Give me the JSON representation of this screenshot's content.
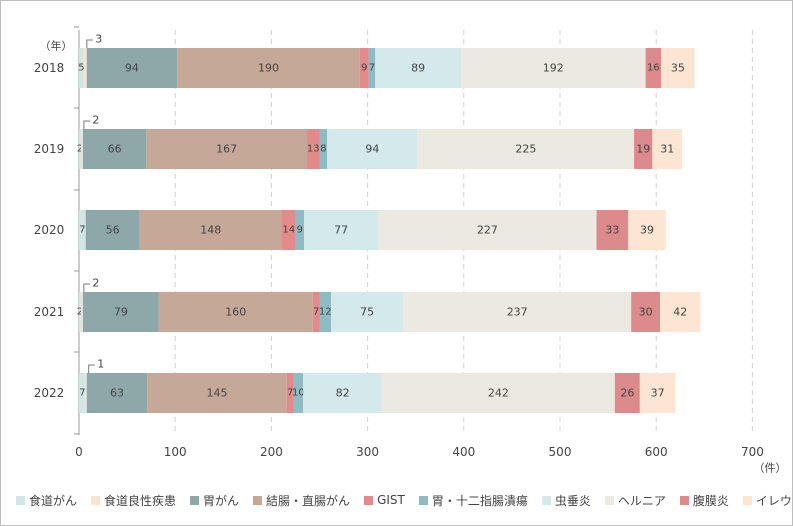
{
  "chart_data": {
    "type": "bar",
    "orientation": "horizontal",
    "stacked": true,
    "y_unit_label": "（年）",
    "x_unit_label": "（件）",
    "categories": [
      "2018",
      "2019",
      "2020",
      "2021",
      "2022"
    ],
    "series": [
      {
        "name": "食道がん",
        "color": "#d3e6e6",
        "values": [
          5,
          2,
          7,
          2,
          7
        ]
      },
      {
        "name": "食道良性疾患",
        "color": "#fbe3d2",
        "values": [
          3,
          2,
          0,
          2,
          1
        ]
      },
      {
        "name": "胃がん",
        "color": "#8ea8aa",
        "values": [
          94,
          66,
          56,
          79,
          63
        ]
      },
      {
        "name": "結腸・直腸がん",
        "color": "#c5a898",
        "values": [
          190,
          167,
          148,
          160,
          145
        ]
      },
      {
        "name": "GIST",
        "color": "#e48a8a",
        "values": [
          9,
          13,
          14,
          7,
          7
        ]
      },
      {
        "name": "胃・十二指腸潰瘍",
        "color": "#8fbcc2",
        "values": [
          7,
          8,
          9,
          12,
          10
        ]
      },
      {
        "name": "虫垂炎",
        "color": "#d4e9ec",
        "values": [
          89,
          94,
          77,
          75,
          82
        ]
      },
      {
        "name": "ヘルニア",
        "color": "#eceae0",
        "values": [
          192,
          225,
          227,
          237,
          242
        ]
      },
      {
        "name": "腹膜炎",
        "color": "#dd8a8c",
        "values": [
          16,
          19,
          33,
          30,
          26
        ]
      },
      {
        "name": "イレウス",
        "color": "#fde5d4",
        "values": [
          35,
          31,
          39,
          42,
          37
        ]
      }
    ],
    "callouts": [
      {
        "category": "2018",
        "series": "食道良性疾患",
        "label": "3"
      },
      {
        "category": "2019",
        "series": "食道良性疾患",
        "label": "2"
      },
      {
        "category": "2021",
        "series": "食道良性疾患",
        "label": "2"
      },
      {
        "category": "2022",
        "series": "食道良性疾患",
        "label": "1"
      }
    ],
    "xlim": [
      0,
      700
    ],
    "x_ticks": [
      0,
      100,
      200,
      300,
      400,
      500,
      600,
      700
    ],
    "grid": "vertical dashed",
    "legend_position": "bottom"
  }
}
